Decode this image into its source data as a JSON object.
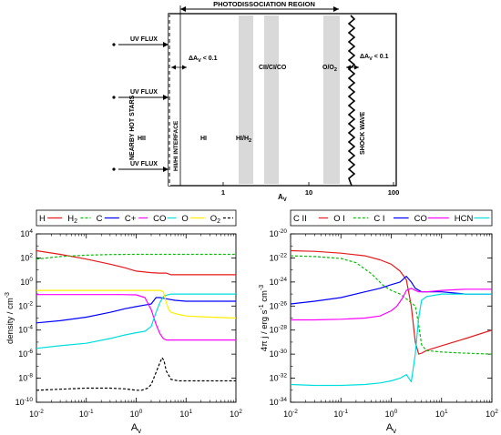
{
  "schematic": {
    "region_label": "PHOTODISSOCIATION REGION",
    "left_vertical_label": "NEARBY HOT STARS",
    "flux_label": "UV FLUX",
    "interface_label": "HII/HI INTERFACE",
    "shock_label": "SHOCK WAVE",
    "delta_av_left": "ΔA",
    "delta_av_right": "ΔA",
    "delta_av_sub": "V",
    "delta_av_value": "< 0.1",
    "zones": {
      "hii": "HII",
      "hi": "HI",
      "hi_h2": "HI/H",
      "hi_h2_sub": "2",
      "cii": "CII/CI/CO",
      "o_o2": "O/O",
      "o_o2_sub": "2"
    },
    "axis_ticks": [
      "1",
      "10",
      "100"
    ],
    "axis_label": "A",
    "axis_label_sub": "V",
    "colors": {
      "band": "#d9d9d9"
    }
  },
  "chart_data": [
    {
      "type": "line",
      "xlabel": "Av",
      "ylabel": "density / cm-3",
      "xscale": "log",
      "yscale": "log",
      "xlim": [
        0.01,
        100
      ],
      "ylim": [
        1e-10,
        10000.0
      ],
      "xticks": [
        {
          "v": 0.01,
          "b": "10",
          "e": "-2"
        },
        {
          "v": 0.1,
          "b": "10",
          "e": "-1"
        },
        {
          "v": 1,
          "b": "10",
          "e": "0"
        },
        {
          "v": 10,
          "b": "10",
          "e": "1"
        },
        {
          "v": 100,
          "b": "10",
          "e": "2"
        }
      ],
      "yticks": [
        {
          "v": 1e-10,
          "b": "10",
          "e": "-10"
        },
        {
          "v": 1e-08,
          "b": "10",
          "e": "-8"
        },
        {
          "v": 1e-06,
          "b": "10",
          "e": "-6"
        },
        {
          "v": 0.0001,
          "b": "10",
          "e": "-4"
        },
        {
          "v": 0.01,
          "b": "10",
          "e": "-2"
        },
        {
          "v": 1,
          "b": "10",
          "e": "0"
        },
        {
          "v": 100,
          "b": "10",
          "e": "2"
        },
        {
          "v": 10000.0,
          "b": "10",
          "e": "4"
        }
      ],
      "legend": [
        {
          "name": "H",
          "sub": "",
          "color": "#e41a1c",
          "dash": ""
        },
        {
          "name": "H",
          "sub": "2",
          "color": "#00c000",
          "dash": "3,2"
        },
        {
          "name": "C",
          "sub": "",
          "color": "#0000ff",
          "dash": ""
        },
        {
          "name": "C+",
          "sub": "",
          "color": "#ff00ff",
          "dash": ""
        },
        {
          "name": "CO",
          "sub": "",
          "color": "#00dddd",
          "dash": ""
        },
        {
          "name": "O",
          "sub": "",
          "color": "#ffee00",
          "dash": ""
        },
        {
          "name": "O",
          "sub": "2",
          "color": "#000000",
          "dash": "3,2"
        }
      ],
      "series": [
        {
          "color": "#e41a1c",
          "dash": "",
          "x": [
            0.01,
            0.03,
            0.1,
            0.3,
            0.6,
            1,
            2,
            3,
            4,
            5,
            10,
            30,
            100
          ],
          "y": [
            400,
            200,
            80,
            30,
            15,
            8,
            6,
            5.5,
            5.5,
            4,
            4,
            4,
            4
          ]
        },
        {
          "color": "#00c000",
          "dash": "3,2",
          "x": [
            0.01,
            0.03,
            0.1,
            0.3,
            1,
            3,
            10,
            100
          ],
          "y": [
            80,
            130,
            170,
            190,
            200,
            200,
            200,
            200
          ]
        },
        {
          "color": "#0000ff",
          "dash": "",
          "x": [
            0.01,
            0.03,
            0.1,
            0.3,
            0.6,
            1,
            1.5,
            2,
            2.5,
            3,
            4,
            6,
            10,
            30,
            100
          ],
          "y": [
            0.0004,
            0.0006,
            0.0012,
            0.003,
            0.006,
            0.009,
            0.012,
            0.015,
            0.05,
            0.05,
            0.04,
            0.03,
            0.025,
            0.025,
            0.025
          ]
        },
        {
          "color": "#ff00ff",
          "dash": "",
          "x": [
            0.01,
            0.1,
            0.5,
            1,
            1.5,
            2,
            2.5,
            3,
            3.5,
            4,
            5,
            10,
            100
          ],
          "y": [
            0.09,
            0.09,
            0.09,
            0.085,
            0.05,
            0.005,
            0.0003,
            5e-05,
            2e-05,
            1.5e-05,
            1.5e-05,
            1.5e-05,
            1.5e-05
          ]
        },
        {
          "color": "#00dddd",
          "dash": "",
          "x": [
            0.01,
            0.03,
            0.1,
            0.3,
            0.6,
            1,
            1.5,
            2,
            2.5,
            3,
            3.5,
            4,
            5,
            10,
            30,
            100
          ],
          "y": [
            3e-06,
            5e-06,
            8e-06,
            2e-05,
            4e-05,
            6e-05,
            8e-05,
            0.0002,
            0.003,
            0.02,
            0.06,
            0.08,
            0.1,
            0.1,
            0.1,
            0.1
          ]
        },
        {
          "color": "#ffee00",
          "dash": "",
          "x": [
            0.01,
            0.1,
            1,
            2,
            3,
            3.5,
            4,
            4.5,
            5,
            7,
            10,
            30,
            100
          ],
          "y": [
            0.2,
            0.2,
            0.2,
            0.2,
            0.2,
            0.15,
            0.02,
            0.005,
            0.003,
            0.002,
            0.0015,
            0.0012,
            0.001
          ]
        },
        {
          "color": "#000000",
          "dash": "3,2",
          "x": [
            0.01,
            0.03,
            0.1,
            0.3,
            0.6,
            1,
            1.3,
            1.7,
            2,
            2.5,
            3,
            3.3,
            3.6,
            4,
            5,
            7,
            10,
            30,
            100
          ],
          "y": [
            1e-09,
            1.2e-09,
            1.5e-09,
            1.5e-09,
            1.3e-09,
            1e-09,
            1e-09,
            1.5e-09,
            3e-09,
            3e-08,
            2e-07,
            5e-07,
            3e-07,
            4e-08,
            8e-09,
            6e-09,
            6e-09,
            6e-09,
            6e-09
          ]
        }
      ]
    },
    {
      "type": "line",
      "xlabel": "Av",
      "ylabel": "4π j / erg s-1 cm-3",
      "xscale": "log",
      "yscale": "log",
      "xlim": [
        0.01,
        100
      ],
      "ylim": [
        1e-34,
        1e-20
      ],
      "xticks": [
        {
          "v": 0.01,
          "b": "10",
          "e": "-2"
        },
        {
          "v": 0.1,
          "b": "10",
          "e": "-1"
        },
        {
          "v": 1,
          "b": "10",
          "e": "0"
        },
        {
          "v": 10,
          "b": "10",
          "e": "1"
        },
        {
          "v": 100,
          "b": "10",
          "e": "2"
        }
      ],
      "yticks": [
        {
          "v": 1e-34,
          "b": "10",
          "e": "-34"
        },
        {
          "v": 1e-32,
          "b": "10",
          "e": "-32"
        },
        {
          "v": 1e-30,
          "b": "10",
          "e": "-30"
        },
        {
          "v": 1e-28,
          "b": "10",
          "e": "-28"
        },
        {
          "v": 1e-26,
          "b": "10",
          "e": "-26"
        },
        {
          "v": 1e-24,
          "b": "10",
          "e": "-24"
        },
        {
          "v": 1e-22,
          "b": "10",
          "e": "-22"
        },
        {
          "v": 1e-20,
          "b": "10",
          "e": "-20"
        }
      ],
      "legend": [
        {
          "name": "C II",
          "sub": "",
          "color": "#e41a1c",
          "dash": ""
        },
        {
          "name": "O I",
          "sub": "",
          "color": "#00c000",
          "dash": "3,2"
        },
        {
          "name": "C I",
          "sub": "",
          "color": "#0000ff",
          "dash": ""
        },
        {
          "name": "CO",
          "sub": "",
          "color": "#ff00ff",
          "dash": ""
        },
        {
          "name": "HCN",
          "sub": "",
          "color": "#00dddd",
          "dash": ""
        }
      ],
      "series": [
        {
          "color": "#e41a1c",
          "dash": "",
          "x": [
            0.01,
            0.03,
            0.1,
            0.3,
            0.6,
            1,
            1.5,
            2,
            2.5,
            3,
            3.5,
            4,
            5,
            10,
            30,
            100
          ],
          "y": [
            4e-22,
            3.5e-22,
            2.5e-22,
            1.5e-22,
            7e-23,
            3e-23,
            8e-24,
            1.5e-24,
            1e-26,
            1e-29,
            1e-30,
            1.2e-30,
            2e-30,
            5e-30,
            2e-29,
            1e-28
          ]
        },
        {
          "color": "#00c000",
          "dash": "3,2",
          "x": [
            0.01,
            0.03,
            0.1,
            0.2,
            0.4,
            0.7,
            1,
            1.5,
            2,
            3,
            3.5,
            4,
            5,
            10,
            30,
            100
          ],
          "y": [
            1.5e-22,
            1.3e-22,
            9e-23,
            4e-23,
            5e-24,
            5e-25,
            2e-25,
            1e-25,
            4e-26,
            1e-26,
            3e-28,
            6e-30,
            2e-30,
            1.5e-30,
            1.2e-30,
            1e-30
          ]
        },
        {
          "color": "#0000ff",
          "dash": "",
          "x": [
            0.01,
            0.03,
            0.1,
            0.3,
            0.6,
            1,
            1.5,
            2,
            2.5,
            3,
            4,
            6,
            10,
            30,
            100
          ],
          "y": [
            1.5e-26,
            2.5e-26,
            5e-26,
            1.5e-25,
            3e-25,
            6e-25,
            1e-24,
            3e-24,
            1e-24,
            3e-25,
            1.5e-25,
            1.5e-25,
            1.5e-25,
            1e-25,
            1e-25
          ]
        },
        {
          "color": "#ff00ff",
          "dash": "",
          "x": [
            0.01,
            0.03,
            0.1,
            0.3,
            0.6,
            1,
            1.3,
            1.7,
            2,
            2.5,
            3,
            3.5,
            4,
            5,
            10,
            30,
            100
          ],
          "y": [
            7e-28,
            7e-28,
            8e-28,
            1e-27,
            1.5e-27,
            4e-27,
            1e-26,
            5e-26,
            2e-25,
            3e-25,
            2e-25,
            1.5e-25,
            1.5e-25,
            1.5e-25,
            2e-25,
            2.5e-25,
            2.5e-25
          ]
        },
        {
          "color": "#00dddd",
          "dash": "",
          "x": [
            0.01,
            0.03,
            0.1,
            0.3,
            0.6,
            1,
            1.5,
            2,
            2.5,
            3,
            3.5,
            4,
            5,
            10,
            30,
            100
          ],
          "y": [
            3e-33,
            2.5e-33,
            2.5e-33,
            3e-33,
            4e-33,
            6e-33,
            1e-32,
            2e-32,
            5e-33,
            1e-30,
            1e-27,
            3e-26,
            6e-26,
            1e-25,
            1e-25,
            1e-25
          ]
        }
      ]
    }
  ]
}
